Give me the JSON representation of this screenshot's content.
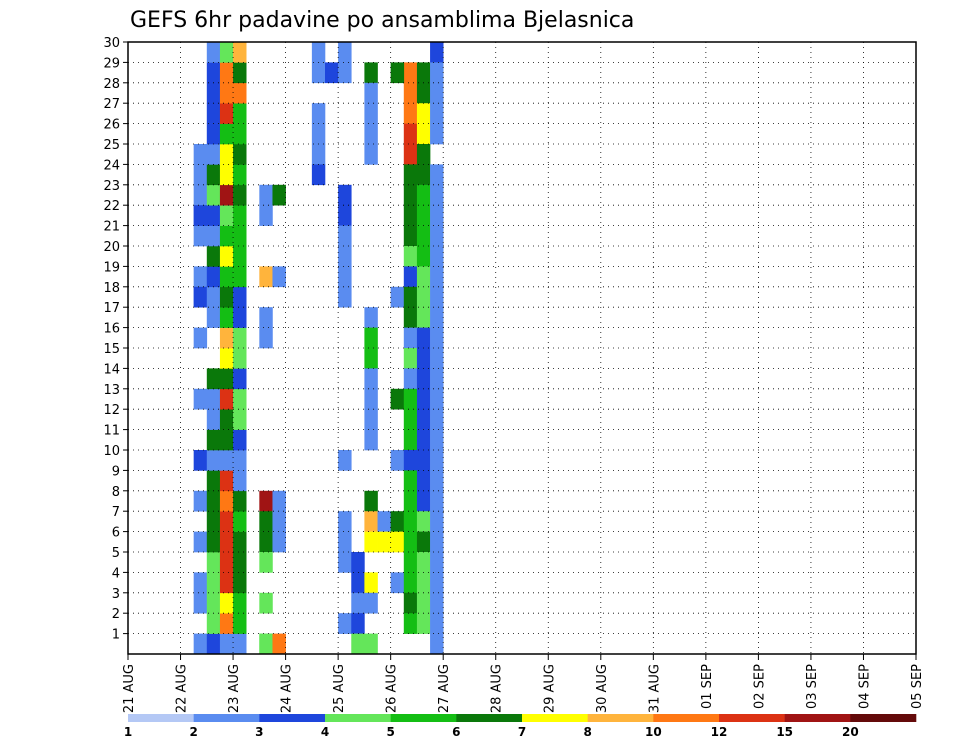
{
  "chart_data": {
    "type": "heatmap",
    "title": "GEFS 6hr padavine po ansamblima Bjelasnica",
    "xlabel": "",
    "ylabel": "",
    "x_tick_labels": [
      "21 AUG",
      "22 AUG",
      "23 AUG",
      "24 AUG",
      "25 AUG",
      "26 AUG",
      "27 AUG",
      "28 AUG",
      "29 AUG",
      "30 AUG",
      "31 AUG",
      "01 SEP",
      "02 SEP",
      "03 SEP",
      "04 SEP",
      "05 SEP"
    ],
    "y_tick_labels": [
      "1",
      "2",
      "3",
      "4",
      "5",
      "6",
      "7",
      "8",
      "9",
      "10",
      "11",
      "12",
      "13",
      "14",
      "15",
      "16",
      "17",
      "18",
      "19",
      "20",
      "21",
      "22",
      "23",
      "24",
      "25",
      "26",
      "27",
      "28",
      "29",
      "30"
    ],
    "x_range_steps": [
      0,
      60
    ],
    "y_range_members": [
      0,
      30
    ],
    "steps_per_day": 4,
    "colorbar": {
      "bounds": [
        "1",
        "2",
        "3",
        "4",
        "5",
        "6",
        "7",
        "8",
        "10",
        "12",
        "15",
        "20"
      ],
      "colors": [
        "#b4c8f5",
        "#5a8cf0",
        "#1e46dc",
        "#64e65a",
        "#14be14",
        "#0a780a",
        "#ffff00",
        "#ffb43c",
        "#ff7814",
        "#dc3214",
        "#a01414",
        "#640a0a"
      ]
    },
    "cells": [
      [
        5,
        0,
        1
      ],
      [
        5,
        2,
        1
      ],
      [
        5,
        3,
        1
      ],
      [
        5,
        5,
        1
      ],
      [
        5,
        7,
        1
      ],
      [
        5,
        12,
        1
      ],
      [
        5,
        15,
        1
      ],
      [
        5,
        17,
        1
      ],
      [
        5,
        18,
        1
      ],
      [
        5,
        20,
        1
      ],
      [
        5,
        21,
        1
      ],
      [
        5,
        22,
        1
      ],
      [
        5,
        23,
        1
      ],
      [
        5,
        24,
        1
      ],
      [
        5,
        9,
        2
      ],
      [
        5,
        21,
        2
      ],
      [
        5,
        17,
        2
      ],
      [
        6,
        0,
        2
      ],
      [
        6,
        1,
        3
      ],
      [
        6,
        2,
        3
      ],
      [
        6,
        3,
        3
      ],
      [
        6,
        4,
        3
      ],
      [
        6,
        5,
        5
      ],
      [
        6,
        6,
        5
      ],
      [
        6,
        7,
        5
      ],
      [
        6,
        8,
        5
      ],
      [
        6,
        9,
        1
      ],
      [
        6,
        10,
        5
      ],
      [
        6,
        11,
        1
      ],
      [
        6,
        12,
        1
      ],
      [
        6,
        13,
        5
      ],
      [
        6,
        16,
        1
      ],
      [
        6,
        17,
        1
      ],
      [
        6,
        18,
        2
      ],
      [
        6,
        19,
        5
      ],
      [
        6,
        20,
        1
      ],
      [
        6,
        21,
        2
      ],
      [
        6,
        22,
        3
      ],
      [
        6,
        23,
        5
      ],
      [
        6,
        24,
        1
      ],
      [
        6,
        25,
        2
      ],
      [
        6,
        26,
        2
      ],
      [
        6,
        27,
        2
      ],
      [
        6,
        28,
        2
      ],
      [
        6,
        29,
        1
      ],
      [
        7,
        0,
        1
      ],
      [
        7,
        1,
        8
      ],
      [
        7,
        2,
        6
      ],
      [
        7,
        3,
        9
      ],
      [
        7,
        4,
        9
      ],
      [
        7,
        5,
        9
      ],
      [
        7,
        6,
        9
      ],
      [
        7,
        7,
        8
      ],
      [
        7,
        8,
        9
      ],
      [
        7,
        9,
        1
      ],
      [
        7,
        10,
        5
      ],
      [
        7,
        11,
        5
      ],
      [
        7,
        12,
        9
      ],
      [
        7,
        13,
        5
      ],
      [
        7,
        14,
        6
      ],
      [
        7,
        15,
        7
      ],
      [
        7,
        16,
        4
      ],
      [
        7,
        17,
        5
      ],
      [
        7,
        18,
        4
      ],
      [
        7,
        19,
        6
      ],
      [
        7,
        20,
        4
      ],
      [
        7,
        21,
        3
      ],
      [
        7,
        22,
        10
      ],
      [
        7,
        23,
        6
      ],
      [
        7,
        24,
        6
      ],
      [
        7,
        25,
        4
      ],
      [
        7,
        26,
        9
      ],
      [
        7,
        27,
        8
      ],
      [
        7,
        28,
        8
      ],
      [
        7,
        29,
        3
      ],
      [
        8,
        0,
        1
      ],
      [
        8,
        1,
        4
      ],
      [
        8,
        2,
        4
      ],
      [
        8,
        3,
        5
      ],
      [
        8,
        4,
        5
      ],
      [
        8,
        5,
        5
      ],
      [
        8,
        6,
        4
      ],
      [
        8,
        7,
        5
      ],
      [
        8,
        8,
        1
      ],
      [
        8,
        9,
        1
      ],
      [
        8,
        10,
        2
      ],
      [
        8,
        11,
        3
      ],
      [
        8,
        12,
        3
      ],
      [
        8,
        13,
        2
      ],
      [
        8,
        14,
        3
      ],
      [
        8,
        15,
        3
      ],
      [
        8,
        16,
        2
      ],
      [
        8,
        17,
        2
      ],
      [
        8,
        18,
        4
      ],
      [
        8,
        19,
        4
      ],
      [
        8,
        20,
        4
      ],
      [
        8,
        21,
        4
      ],
      [
        8,
        22,
        5
      ],
      [
        8,
        23,
        4
      ],
      [
        8,
        24,
        5
      ],
      [
        8,
        25,
        4
      ],
      [
        8,
        26,
        4
      ],
      [
        8,
        27,
        8
      ],
      [
        8,
        28,
        5
      ],
      [
        8,
        29,
        7
      ],
      [
        10,
        0,
        3
      ],
      [
        10,
        0,
        3
      ],
      [
        11,
        0,
        8
      ],
      [
        10,
        16,
        1
      ],
      [
        10,
        15,
        1
      ],
      [
        10,
        7,
        10
      ],
      [
        10,
        6,
        5
      ],
      [
        10,
        5,
        5
      ],
      [
        10,
        4,
        3
      ],
      [
        10,
        2,
        3
      ],
      [
        10,
        22,
        1
      ],
      [
        10,
        21,
        1
      ],
      [
        10,
        18,
        7
      ],
      [
        11,
        18,
        1
      ],
      [
        11,
        7,
        1
      ],
      [
        11,
        6,
        1
      ],
      [
        11,
        5,
        1
      ],
      [
        11,
        22,
        5
      ],
      [
        14,
        26,
        1
      ],
      [
        14,
        25,
        1
      ],
      [
        14,
        24,
        1
      ],
      [
        14,
        23,
        2
      ],
      [
        14,
        28,
        1
      ],
      [
        15,
        28,
        2
      ],
      [
        14,
        29,
        1
      ],
      [
        16,
        29,
        1
      ],
      [
        16,
        28,
        1
      ],
      [
        16,
        22,
        2
      ],
      [
        16,
        21,
        2
      ],
      [
        16,
        20,
        1
      ],
      [
        16,
        19,
        1
      ],
      [
        16,
        18,
        1
      ],
      [
        16,
        17,
        1
      ],
      [
        16,
        9,
        1
      ],
      [
        16,
        6,
        1
      ],
      [
        16,
        5,
        1
      ],
      [
        16,
        4,
        1
      ],
      [
        16,
        1,
        1
      ],
      [
        17,
        4,
        2
      ],
      [
        17,
        3,
        2
      ],
      [
        17,
        2,
        1
      ],
      [
        17,
        1,
        2
      ],
      [
        17,
        0,
        3
      ],
      [
        18,
        0,
        3
      ],
      [
        18,
        28,
        5
      ],
      [
        18,
        27,
        1
      ],
      [
        18,
        26,
        1
      ],
      [
        18,
        25,
        1
      ],
      [
        18,
        24,
        1
      ],
      [
        18,
        16,
        1
      ],
      [
        18,
        15,
        4
      ],
      [
        18,
        14,
        4
      ],
      [
        18,
        13,
        1
      ],
      [
        18,
        12,
        1
      ],
      [
        18,
        11,
        1
      ],
      [
        18,
        10,
        1
      ],
      [
        18,
        7,
        5
      ],
      [
        18,
        6,
        7
      ],
      [
        18,
        5,
        6
      ],
      [
        18,
        3,
        6
      ],
      [
        18,
        2,
        1
      ],
      [
        19,
        6,
        1
      ],
      [
        19,
        5,
        6
      ],
      [
        20,
        6,
        5
      ],
      [
        20,
        5,
        6
      ],
      [
        20,
        17,
        1
      ],
      [
        20,
        9,
        1
      ],
      [
        20,
        12,
        5
      ],
      [
        20,
        3,
        1
      ],
      [
        21,
        28,
        8
      ],
      [
        21,
        27,
        8
      ],
      [
        21,
        26,
        8
      ],
      [
        21,
        25,
        9
      ],
      [
        21,
        24,
        9
      ],
      [
        21,
        23,
        5
      ],
      [
        21,
        22,
        5
      ],
      [
        21,
        21,
        5
      ],
      [
        21,
        20,
        5
      ],
      [
        21,
        19,
        3
      ],
      [
        21,
        18,
        2
      ],
      [
        21,
        17,
        5
      ],
      [
        21,
        16,
        5
      ],
      [
        21,
        15,
        1
      ],
      [
        21,
        14,
        3
      ],
      [
        21,
        13,
        1
      ],
      [
        21,
        12,
        4
      ],
      [
        21,
        11,
        4
      ],
      [
        21,
        10,
        4
      ],
      [
        21,
        9,
        2
      ],
      [
        21,
        8,
        4
      ],
      [
        21,
        7,
        4
      ],
      [
        21,
        6,
        4
      ],
      [
        21,
        5,
        4
      ],
      [
        21,
        4,
        4
      ],
      [
        21,
        3,
        4
      ],
      [
        21,
        2,
        5
      ],
      [
        21,
        1,
        4
      ],
      [
        20,
        28,
        5
      ],
      [
        22,
        28,
        5
      ],
      [
        22,
        27,
        5
      ],
      [
        22,
        26,
        6
      ],
      [
        22,
        25,
        6
      ],
      [
        22,
        24,
        5
      ],
      [
        22,
        23,
        5
      ],
      [
        22,
        22,
        4
      ],
      [
        22,
        21,
        4
      ],
      [
        22,
        20,
        4
      ],
      [
        22,
        19,
        4
      ],
      [
        22,
        18,
        3
      ],
      [
        22,
        17,
        3
      ],
      [
        22,
        16,
        3
      ],
      [
        22,
        15,
        2
      ],
      [
        22,
        14,
        2
      ],
      [
        22,
        13,
        2
      ],
      [
        22,
        12,
        2
      ],
      [
        22,
        11,
        2
      ],
      [
        22,
        10,
        2
      ],
      [
        22,
        9,
        2
      ],
      [
        22,
        8,
        2
      ],
      [
        22,
        7,
        2
      ],
      [
        22,
        6,
        3
      ],
      [
        22,
        5,
        5
      ],
      [
        22,
        4,
        3
      ],
      [
        22,
        3,
        3
      ],
      [
        22,
        2,
        3
      ],
      [
        22,
        1,
        3
      ],
      [
        23,
        29,
        2
      ],
      [
        23,
        26,
        1
      ],
      [
        23,
        25,
        1
      ],
      [
        23,
        28,
        1
      ],
      [
        23,
        27,
        1
      ],
      [
        23,
        23,
        1
      ],
      [
        23,
        22,
        1
      ],
      [
        23,
        21,
        1
      ],
      [
        23,
        20,
        1
      ],
      [
        23,
        19,
        1
      ],
      [
        23,
        18,
        1
      ],
      [
        23,
        17,
        1
      ],
      [
        23,
        16,
        1
      ],
      [
        23,
        15,
        1
      ],
      [
        23,
        14,
        1
      ],
      [
        23,
        13,
        1
      ],
      [
        23,
        12,
        1
      ],
      [
        23,
        11,
        1
      ],
      [
        23,
        10,
        1
      ],
      [
        23,
        9,
        1
      ],
      [
        23,
        8,
        1
      ],
      [
        23,
        7,
        1
      ],
      [
        23,
        6,
        1
      ],
      [
        23,
        5,
        1
      ],
      [
        23,
        4,
        1
      ],
      [
        23,
        3,
        1
      ],
      [
        23,
        2,
        1
      ],
      [
        23,
        1,
        1
      ],
      [
        23,
        0,
        1
      ]
    ],
    "cells_note": ""
  }
}
